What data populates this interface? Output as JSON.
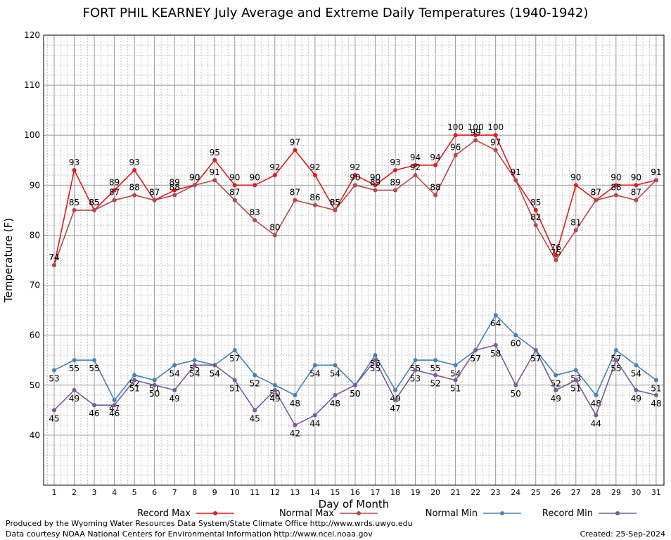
{
  "chart_data": {
    "type": "line",
    "title": "FORT PHIL KEARNEY July Average and Extreme Daily Temperatures (1940-1942)",
    "xlabel": "Day of Month",
    "ylabel": "Temperature (F)",
    "ylim": [
      30,
      120
    ],
    "yticks": [
      40,
      50,
      60,
      70,
      80,
      90,
      100,
      110,
      120
    ],
    "x": [
      1,
      2,
      3,
      4,
      5,
      6,
      7,
      8,
      9,
      10,
      11,
      12,
      13,
      14,
      15,
      16,
      17,
      18,
      19,
      20,
      21,
      22,
      23,
      24,
      25,
      26,
      27,
      28,
      29,
      30,
      31
    ],
    "grid": true,
    "legend_position": "bottom",
    "series": [
      {
        "name": "Record Max",
        "color": "#e8161b",
        "label_pos": "above",
        "values": [
          74,
          93,
          85,
          89,
          93,
          87,
          89,
          90,
          95,
          90,
          90,
          92,
          97,
          92,
          85,
          92,
          90,
          93,
          94,
          94,
          100,
          100,
          100,
          91,
          85,
          76,
          90,
          87,
          90,
          90,
          91
        ]
      },
      {
        "name": "Normal Max",
        "color": "#b5474a",
        "label_pos": "above",
        "values": [
          74,
          85,
          85,
          87,
          88,
          87,
          88,
          90,
          91,
          87,
          83,
          80,
          87,
          86,
          85,
          90,
          89,
          89,
          92,
          88,
          96,
          99,
          97,
          91,
          82,
          75,
          81,
          87,
          88,
          87,
          91
        ]
      },
      {
        "name": "Normal Min",
        "color": "#4682b4",
        "label_pos": "below",
        "values": [
          53,
          55,
          55,
          47,
          52,
          51,
          54,
          55,
          54,
          57,
          52,
          50,
          48,
          54,
          54,
          50,
          56,
          49,
          55,
          55,
          54,
          57,
          64,
          60,
          57,
          52,
          53,
          48,
          57,
          54,
          51
        ]
      },
      {
        "name": "Record Min",
        "color": "#7b5a9a",
        "label_pos": "below",
        "values": [
          45,
          49,
          46,
          46,
          51,
          50,
          49,
          54,
          54,
          51,
          45,
          49,
          42,
          44,
          48,
          50,
          55,
          47,
          53,
          52,
          51,
          57,
          58,
          50,
          57,
          49,
          51,
          44,
          55,
          49,
          48
        ]
      }
    ]
  },
  "footer": {
    "produced_by": "Produced by the Wyoming Water Resources Data System/State Climate Office http://www.wrds.uwyo.edu",
    "courtesy": "Data courtesy NOAA National Centers for Environmental Information http://www.ncei.noaa.gov",
    "created": "Created: 25-Sep-2024"
  }
}
